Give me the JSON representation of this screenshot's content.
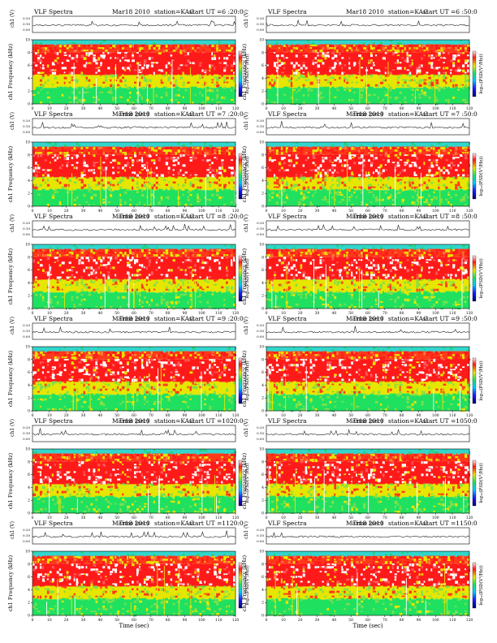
{
  "page": {
    "title_label": "VLF Spectra"
  },
  "panels": [
    {
      "date": "Mar18 2010",
      "station": "station=KAG",
      "start": "start  UT =6 :20:0"
    },
    {
      "date": "Mar18 2010",
      "station": "station=KAG",
      "start": "start  UT =6 :50:0"
    },
    {
      "date": "Mar18 2010",
      "station": "station=KAG",
      "start": "start  UT =7 :20:0"
    },
    {
      "date": "Mar18 2010",
      "station": "station=KAG",
      "start": "start  UT =7 :50:0"
    },
    {
      "date": "Mar18 2010",
      "station": "station=KAG",
      "start": "start  UT =8 :20:0"
    },
    {
      "date": "Mar18 2010",
      "station": "station=KAG",
      "start": "start  UT =8 :50:0"
    },
    {
      "date": "Mar18 2010",
      "station": "station=KAG",
      "start": "start  UT =9 :20:0"
    },
    {
      "date": "Mar18 2010",
      "station": "station=KAG",
      "start": "start  UT =9 :50:0"
    },
    {
      "date": "Mar18 2010",
      "station": "station=KAG",
      "start": "start  UT =1020:0"
    },
    {
      "date": "Mar18 2010",
      "station": "station=KAG",
      "start": "start  UT =1050:0"
    },
    {
      "date": "Mar18 2010",
      "station": "station=KAG",
      "start": "start  UT =1120:0"
    },
    {
      "date": "Mar18 2010",
      "station": "station=KAG",
      "start": "start  UT =1150:0"
    }
  ],
  "chart_data": {
    "type": "heatmap",
    "panel_count": 12,
    "grid": "6 rows x 2 columns",
    "xlabel": "Time (sec)",
    "x_ticks": [
      0,
      10,
      20,
      30,
      40,
      50,
      60,
      70,
      80,
      90,
      100,
      110,
      120
    ],
    "xlim": [
      0,
      120
    ],
    "ylabel": "ch1 Frequency (kHz)",
    "y_ticks": [
      0,
      2,
      4,
      6,
      8,
      10
    ],
    "ylim": [
      0,
      10
    ],
    "top_trace_label": "ch1 (V)",
    "top_trace_ticks": [
      "0.20",
      "0.10",
      "0.00"
    ],
    "colorbar_label": "log₁₀(PSD(V²/Hz))",
    "colorbar_ticks": [
      "-",
      "-",
      "-",
      "-"
    ],
    "colormap": [
      "#1c1cff",
      "#00c8ff",
      "#20e060",
      "#e6e600",
      "#ff1a1a",
      "#ffffff"
    ],
    "frequency_bands_khz": [
      {
        "range": [
          9.3,
          10
        ],
        "level": "cyan"
      },
      {
        "range": [
          8.0,
          9.3
        ],
        "level": "red-yellow"
      },
      {
        "range": [
          4.5,
          8.0
        ],
        "level": "red-white"
      },
      {
        "range": [
          2.5,
          4.5
        ],
        "level": "yellow"
      },
      {
        "range": [
          0,
          2.5
        ],
        "level": "green"
      }
    ],
    "colors": {
      "high": "#ff1a1a",
      "mid": "#e6e600",
      "low": "#20e060",
      "floor": "#00c8ff"
    }
  }
}
